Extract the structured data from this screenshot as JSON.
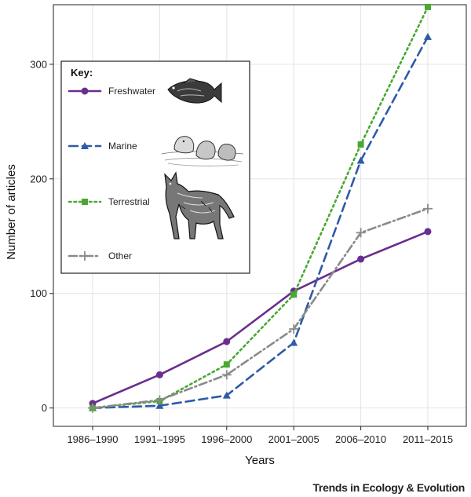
{
  "chart_data": {
    "type": "line",
    "categories": [
      "1986–1990",
      "1991–1995",
      "1996–2000",
      "2001–2005",
      "2006–2010",
      "2011–2015"
    ],
    "xlabel": "Years",
    "ylabel": "Number of articles",
    "ylim": [
      -16,
      352
    ],
    "yticks": [
      0,
      100,
      200,
      300
    ],
    "grid": true,
    "legend": {
      "title": "Key:",
      "placement": "top-left",
      "entries": [
        {
          "name": "Freshwater",
          "image": "fish-illustration"
        },
        {
          "name": "Marine",
          "image": "seals-illustration"
        },
        {
          "name": "Terrestrial",
          "image": "wolf-illustration"
        },
        {
          "name": "Other",
          "image": ""
        }
      ]
    },
    "series": [
      {
        "name": "Freshwater",
        "values": [
          4,
          29,
          58,
          102,
          130,
          154
        ],
        "color": "#6a2e8e",
        "dash": "solid",
        "marker": "circle"
      },
      {
        "name": "Marine",
        "values": [
          0,
          2,
          11,
          57,
          216,
          324
        ],
        "color": "#2f5aa8",
        "dash": "dashed",
        "marker": "triangle"
      },
      {
        "name": "Terrestrial",
        "values": [
          0,
          6,
          38,
          99,
          230,
          350
        ],
        "color": "#4aa832",
        "dash": "dotted",
        "marker": "square"
      },
      {
        "name": "Other",
        "values": [
          0,
          7,
          29,
          69,
          153,
          174
        ],
        "color": "#8a8a8a",
        "dash": "dashdot",
        "marker": "plus"
      }
    ]
  },
  "credit": "Trends in Ecology & Evolution"
}
